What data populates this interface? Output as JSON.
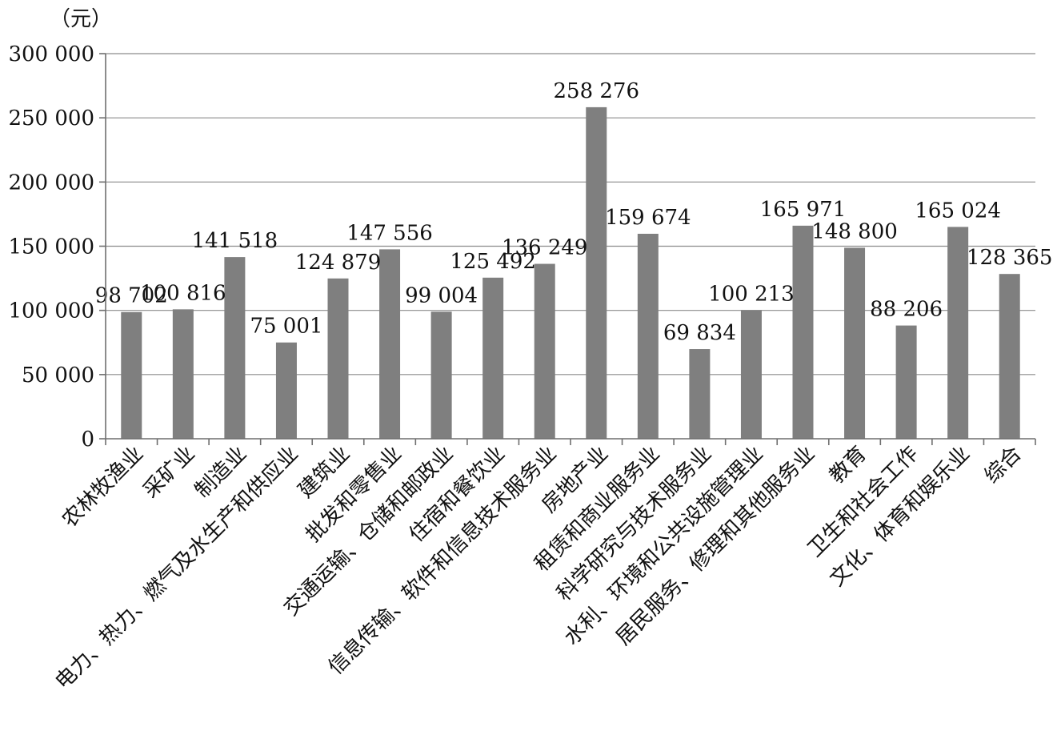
{
  "chart_data": {
    "type": "bar",
    "y_unit": "（元）",
    "categories": [
      "农林牧渔业",
      "采矿业",
      "制造业",
      "电力、热力、燃气及水生产和供应业",
      "建筑业",
      "批发和零售业",
      "交通运输、仓储和邮政业",
      "住宿和餐饮业",
      "信息传输、软件和信息技术服务业",
      "房地产业",
      "租赁和商业服务业",
      "科学研究与技术服务业",
      "水利、环境和公共设施管理业",
      "居民服务、修理和其他服务业",
      "教育",
      "卫生和社会工作",
      "文化、体育和娱乐业",
      "综合"
    ],
    "values": [
      98702,
      100816,
      141518,
      75001,
      124879,
      147556,
      99004,
      125492,
      136249,
      258276,
      159674,
      69834,
      100213,
      165971,
      148800,
      88206,
      165024,
      128365
    ],
    "data_labels": [
      "98 702",
      "100 816",
      "141 518",
      "75 001",
      "124 879",
      "147 556",
      "99 004",
      "125 492",
      "136 249",
      "258 276",
      "159 674",
      "69 834",
      "100 213",
      "165 971",
      "148 800",
      "88 206",
      "165 024",
      "128 365"
    ],
    "y_ticks": [
      0,
      50000,
      100000,
      150000,
      200000,
      250000,
      300000
    ],
    "y_tick_labels": [
      "0",
      "50 000",
      "100 000",
      "150 000",
      "200 000",
      "250 000",
      "300 000"
    ],
    "ylim": [
      0,
      300000
    ],
    "grid": true,
    "legend": "none",
    "bar_color": "#7f7f7f"
  }
}
